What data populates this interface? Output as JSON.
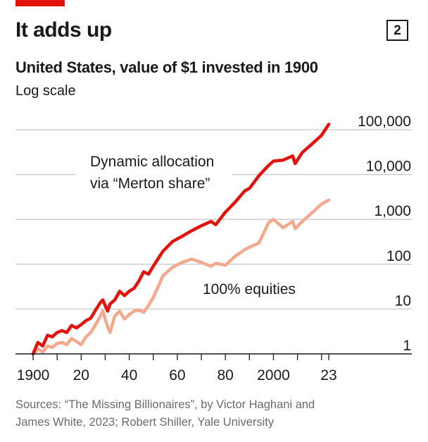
{
  "header": {
    "title": "It adds up",
    "badge": "2",
    "subtitle": "United States, value of $1 invested in 1900",
    "scale_note": "Log scale"
  },
  "colors": {
    "accent": "#e3120b",
    "dynamic": "#e3120b",
    "equities": "#f4a98c",
    "grid": "#c8c8c8",
    "axis": "#1a1a1a",
    "text": "#1a1a1a",
    "source_text": "#6b6b6b"
  },
  "chart_data": {
    "type": "line",
    "yscale": "log",
    "ylim": [
      1,
      150000
    ],
    "xlim": [
      1900,
      2023
    ],
    "y_ticks": [
      {
        "value": 1,
        "label": "1"
      },
      {
        "value": 10,
        "label": "10"
      },
      {
        "value": 100,
        "label": "100"
      },
      {
        "value": 1000,
        "label": "1,000"
      },
      {
        "value": 10000,
        "label": "10,000"
      },
      {
        "value": 100000,
        "label": "100,000"
      }
    ],
    "x_ticks": [
      {
        "value": 1900,
        "label": "1900"
      },
      {
        "value": 1920,
        "label": "20"
      },
      {
        "value": 1940,
        "label": "40"
      },
      {
        "value": 1960,
        "label": "60"
      },
      {
        "value": 1980,
        "label": "80"
      },
      {
        "value": 2000,
        "label": "2000"
      },
      {
        "value": 2023,
        "label": "23"
      }
    ],
    "series": [
      {
        "name": "Dynamic allocation via “Merton share”",
        "label_lines": [
          "Dynamic allocation",
          "via “Merton share”"
        ],
        "x": [
          1900,
          1902,
          1904,
          1906,
          1908,
          1910,
          1912,
          1914,
          1916,
          1918,
          1920,
          1922,
          1924,
          1926,
          1928,
          1929,
          1930,
          1931,
          1932,
          1934,
          1936,
          1938,
          1940,
          1942,
          1944,
          1946,
          1948,
          1950,
          1954,
          1958,
          1962,
          1966,
          1970,
          1974,
          1976,
          1980,
          1984,
          1988,
          1990,
          1994,
          1998,
          2000,
          2004,
          2008,
          2009,
          2012,
          2016,
          2020,
          2023
        ],
        "y": [
          1,
          1.8,
          1.5,
          2.6,
          2.4,
          3,
          3.3,
          3,
          4.3,
          3.8,
          4.5,
          5.5,
          6.3,
          9.5,
          14,
          16,
          12,
          9,
          13,
          16,
          25,
          20,
          25,
          29,
          42,
          68,
          60,
          90,
          195,
          320,
          420,
          560,
          720,
          900,
          760,
          1450,
          2400,
          4300,
          4900,
          9500,
          16000,
          20000,
          21000,
          26000,
          17500,
          31000,
          48000,
          75000,
          132000
        ]
      },
      {
        "name": "100% equities",
        "label_lines": [
          "100% equities"
        ],
        "x": [
          1900,
          1902,
          1904,
          1906,
          1908,
          1910,
          1912,
          1914,
          1916,
          1918,
          1920,
          1922,
          1924,
          1926,
          1928,
          1929,
          1930,
          1931,
          1932,
          1934,
          1936,
          1938,
          1940,
          1942,
          1944,
          1946,
          1948,
          1950,
          1954,
          1958,
          1962,
          1966,
          1970,
          1974,
          1976,
          1980,
          1984,
          1988,
          1990,
          1994,
          1998,
          2000,
          2004,
          2008,
          2009,
          2012,
          2016,
          2020,
          2023
        ],
        "y": [
          1,
          1.3,
          1.1,
          1.5,
          1.4,
          1.7,
          1.8,
          1.6,
          2.2,
          1.9,
          1.6,
          2.4,
          3,
          4.5,
          7,
          9,
          6,
          4,
          3,
          7,
          9,
          6,
          7.5,
          9,
          9.5,
          8.5,
          12,
          18,
          55,
          85,
          110,
          130,
          110,
          90,
          105,
          95,
          150,
          210,
          240,
          300,
          850,
          1000,
          650,
          900,
          620,
          900,
          1400,
          2200,
          2700
        ]
      }
    ],
    "source_lines": [
      "Sources: “The Missing Billionaires”, by Victor Haghani and",
      "James White, 2023; Robert Shiller, Yale University"
    ]
  }
}
